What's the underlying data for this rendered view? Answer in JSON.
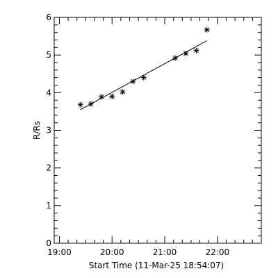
{
  "chart_data": {
    "type": "scatter",
    "title": "",
    "xlabel": "Start Time (11-Mar-25 18:54:07)",
    "ylabel": "R/Rs",
    "x_axis": {
      "min": "18:54:07",
      "max": "22:50",
      "ticks": [
        "19:00",
        "20:00",
        "21:00",
        "22:00"
      ]
    },
    "y_axis": {
      "min": 0,
      "max": 6,
      "ticks": [
        "0",
        "1",
        "2",
        "3",
        "4",
        "5",
        "6"
      ]
    },
    "grid": false,
    "series": [
      {
        "marker": "asterisk",
        "points": [
          {
            "time": "19:24",
            "r": 3.68
          },
          {
            "time": "19:36",
            "r": 3.7
          },
          {
            "time": "19:48",
            "r": 3.89
          },
          {
            "time": "20:00",
            "r": 3.9
          },
          {
            "time": "20:12",
            "r": 4.02
          },
          {
            "time": "20:24",
            "r": 4.3
          },
          {
            "time": "20:36",
            "r": 4.4
          },
          {
            "time": "21:12",
            "r": 4.92
          },
          {
            "time": "21:24",
            "r": 5.04
          },
          {
            "time": "21:36",
            "r": 5.12
          },
          {
            "time": "21:48",
            "r": 5.67
          }
        ]
      }
    ],
    "fit_line": {
      "start": {
        "time": "19:24",
        "r": 3.55
      },
      "end": {
        "time": "21:48",
        "r": 5.38
      }
    }
  }
}
